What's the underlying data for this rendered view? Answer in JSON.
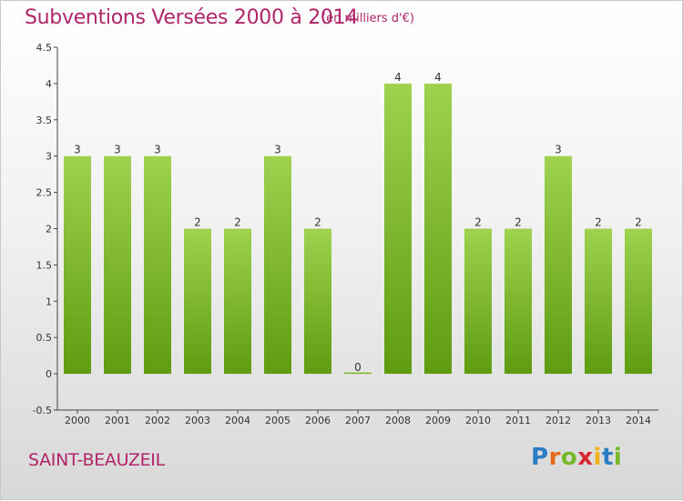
{
  "header": {
    "title": "Subventions Versées 2000 à 2014",
    "unit": "(en milliers d'€)"
  },
  "footer": {
    "place": "SAINT-BEAUZEIL",
    "logo": "Proxiti"
  },
  "colors": {
    "bar_top": "#9ed24f",
    "bar_bottom": "#5e9c10",
    "title": "#b0246a",
    "axis": "#333333"
  },
  "chart_data": {
    "type": "bar",
    "categories": [
      "2000",
      "2001",
      "2002",
      "2003",
      "2004",
      "2005",
      "2006",
      "2007",
      "2008",
      "2009",
      "2010",
      "2011",
      "2012",
      "2013",
      "2014"
    ],
    "values": [
      3,
      3,
      3,
      2,
      2,
      3,
      2,
      0,
      4,
      4,
      2,
      2,
      3,
      2,
      2
    ],
    "data_labels": [
      "3",
      "3",
      "3",
      "2",
      "2",
      "3",
      "2",
      "0",
      "4",
      "4",
      "2",
      "2",
      "3",
      "2",
      "2"
    ],
    "y_ticks": [
      "-0.5",
      "0",
      "0.5",
      "1",
      "1.5",
      "2",
      "2.5",
      "3",
      "3.5",
      "4",
      "4.5"
    ],
    "ylim": [
      -0.5,
      4.5
    ],
    "title": "Subventions Versées 2000 à 2014",
    "xlabel": "",
    "ylabel": "",
    "grid": false
  }
}
